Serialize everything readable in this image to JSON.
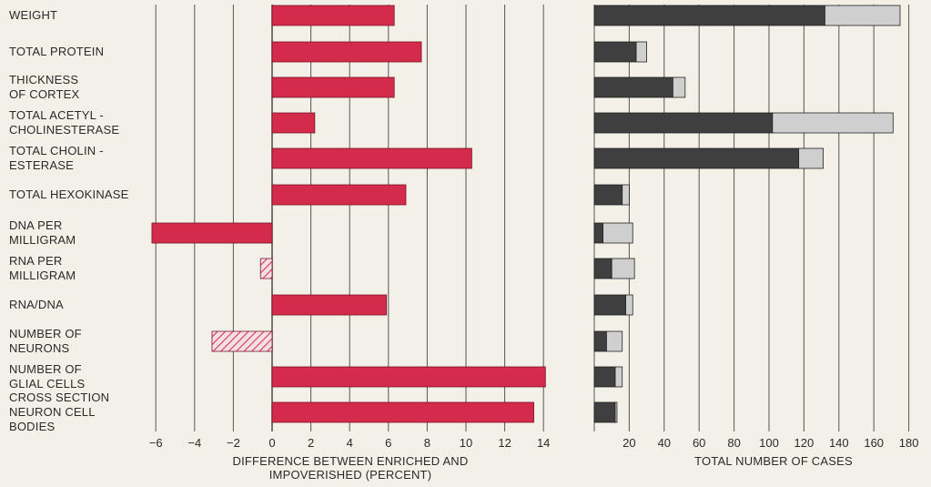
{
  "colors": {
    "background": "#f3f0e7",
    "difference_bar": "#d42a4c",
    "difference_bar_stroke": "#7a1426",
    "nonsignificant_hatch": "#d42a4c",
    "cases_dark": "#3f3f3f",
    "cases_light": "#cfcfcf",
    "grid": "#555555"
  },
  "rows": [
    {
      "label": "WEIGHT"
    },
    {
      "label": "TOTAL PROTEIN"
    },
    {
      "label": "THICKNESS\nOF CORTEX"
    },
    {
      "label": "TOTAL ACETYL -\nCHOLINESTERASE"
    },
    {
      "label": "TOTAL CHOLIN -\nESTERASE"
    },
    {
      "label": "TOTAL HEXOKINASE"
    },
    {
      "label": "DNA PER\nMILLIGRAM"
    },
    {
      "label": "RNA PER\nMILLIGRAM"
    },
    {
      "label": "RNA/DNA"
    },
    {
      "label": "NUMBER OF\nNEURONS"
    },
    {
      "label": "NUMBER OF\nGLIAL CELLS"
    },
    {
      "label": "CROSS SECTION\nNEURON CELL\nBODIES"
    }
  ],
  "chart_data": [
    {
      "type": "bar",
      "orientation": "horizontal",
      "categories": [
        "WEIGHT",
        "TOTAL PROTEIN",
        "THICKNESS OF CORTEX",
        "TOTAL ACETYL - CHOLINESTERASE",
        "TOTAL CHOLIN - ESTERASE",
        "TOTAL HEXOKINASE",
        "DNA PER MILLIGRAM",
        "RNA PER MILLIGRAM",
        "RNA/DNA",
        "NUMBER OF NEURONS",
        "NUMBER OF GLIAL CELLS",
        "CROSS SECTION NEURON CELL BODIES"
      ],
      "values": [
        6.3,
        7.7,
        6.3,
        2.2,
        10.3,
        6.9,
        -6.2,
        -0.6,
        5.9,
        -3.1,
        14.1,
        13.5
      ],
      "hatched": [
        false,
        false,
        false,
        false,
        false,
        false,
        false,
        true,
        false,
        true,
        false,
        false
      ],
      "xlim": [
        -6,
        14
      ],
      "ticks": [
        -6,
        -4,
        -2,
        0,
        2,
        4,
        6,
        8,
        10,
        12,
        14
      ],
      "tick_labels": [
        "−6",
        "−4",
        "−2",
        "0",
        "2",
        "4",
        "6",
        "8",
        "10",
        "12",
        "14"
      ],
      "xlabel": "DIFFERENCE BETWEEN ENRICHED AND\nIMPOVERISHED (PERCENT)",
      "grid": true
    },
    {
      "type": "bar",
      "orientation": "horizontal",
      "stacked": true,
      "categories": [
        "WEIGHT",
        "TOTAL PROTEIN",
        "THICKNESS OF CORTEX",
        "TOTAL ACETYL - CHOLINESTERASE",
        "TOTAL CHOLIN - ESTERASE",
        "TOTAL HEXOKINASE",
        "DNA PER MILLIGRAM",
        "RNA PER MILLIGRAM",
        "RNA/DNA",
        "NUMBER OF NEURONS",
        "NUMBER OF GLIAL CELLS",
        "CROSS SECTION NEURON CELL BODIES"
      ],
      "series": [
        {
          "values": [
            132,
            24,
            45,
            102,
            117,
            16,
            5,
            10,
            18,
            7,
            12,
            12
          ]
        },
        {
          "values": [
            43,
            6,
            7,
            69,
            14,
            4,
            17,
            13,
            4,
            9,
            4,
            1
          ]
        }
      ],
      "totals": [
        175,
        30,
        52,
        171,
        131,
        20,
        22,
        23,
        22,
        16,
        16,
        13
      ],
      "xlim": [
        0,
        180
      ],
      "ticks": [
        20,
        40,
        60,
        80,
        100,
        120,
        140,
        160,
        180
      ],
      "tick_labels": [
        "20",
        "40",
        "60",
        "80",
        "100",
        "120",
        "140",
        "160",
        "180"
      ],
      "xlabel": "TOTAL NUMBER OF CASES",
      "grid": true
    }
  ]
}
